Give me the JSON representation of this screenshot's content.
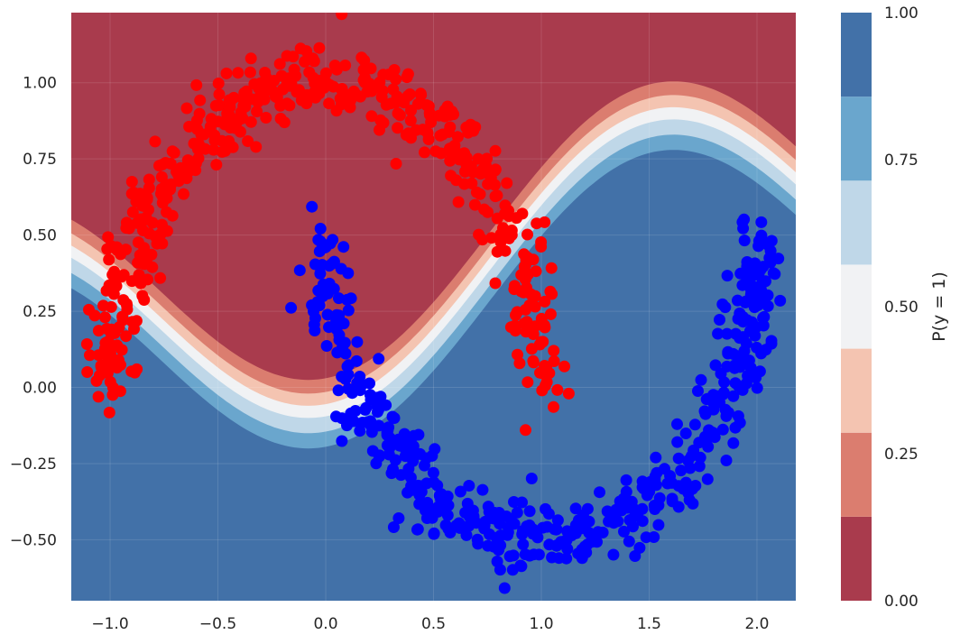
{
  "chart_data": {
    "type": "scatter",
    "title": "",
    "xlabel": "",
    "ylabel": "",
    "xlim": [
      -1.18,
      2.18
    ],
    "ylim": [
      -0.7,
      1.23
    ],
    "xticks": [
      -1.0,
      -0.5,
      0.0,
      0.5,
      1.0,
      1.5,
      2.0
    ],
    "xtick_labels": [
      "−1.0",
      "−0.5",
      "0.0",
      "0.5",
      "1.0",
      "1.5",
      "2.0"
    ],
    "yticks": [
      -0.5,
      -0.25,
      0.0,
      0.25,
      0.5,
      0.75,
      1.0
    ],
    "ytick_labels": [
      "−0.50",
      "−0.25",
      "0.00",
      "0.25",
      "0.50",
      "0.75",
      "1.00"
    ],
    "grid": true,
    "background": "decision-boundary filled contour of P(y = 1)",
    "series": [
      {
        "class": 0,
        "color": "#ff0000",
        "shape": "upper moon",
        "arc_center": [
          0.0,
          0.0
        ],
        "arc_radius": 1.0,
        "point_count": 500,
        "noise_std": 0.06
      },
      {
        "class": 1,
        "color": "#0000ff",
        "shape": "lower moon",
        "arc_center": [
          1.0,
          0.5
        ],
        "arc_radius": 1.0,
        "point_count": 500,
        "noise_std": 0.06
      }
    ],
    "colorbar": {
      "label": "P(y = 1)",
      "levels": [
        0.0,
        0.142857,
        0.285714,
        0.428571,
        0.571429,
        0.714286,
        0.857143,
        1.0
      ],
      "colors": [
        "#a93b4d",
        "#db7d6f",
        "#f4c4b1",
        "#f1f2f4",
        "#bfd7e8",
        "#6aa6cd",
        "#4271a8"
      ],
      "ticks": [
        0.0,
        0.25,
        0.5,
        0.75,
        1.0
      ],
      "tick_labels": [
        "0.00",
        "0.25",
        "0.50",
        "0.75",
        "1.00"
      ]
    }
  }
}
